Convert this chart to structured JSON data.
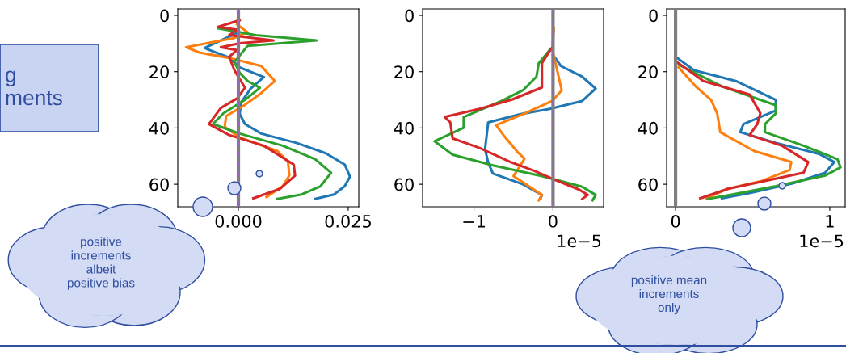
{
  "chart_data": [
    {
      "type": "line",
      "xlim": [
        -0.0138,
        0.0274
      ],
      "ylim": [
        68,
        -2.3
      ],
      "xticks": [
        {
          "value": 0,
          "label": "0.000"
        },
        {
          "value": 0.025,
          "label": "0.025"
        }
      ],
      "yticks": [
        0,
        20,
        40,
        60
      ],
      "grid": false,
      "ref_lines": [
        {
          "axis": "x",
          "value": 0,
          "color": "#7f7f7f"
        },
        {
          "axis": "x",
          "value": 0,
          "color": "#9467bd",
          "line_style": "dashed"
        }
      ],
      "annotations": [
        "g\nments",
        "positive\nincrements\nalbeit\npositive bias"
      ],
      "series": [
        {
          "color": "#1f77b4",
          "x": [
            0.0,
            -0.0077,
            -0.0021,
            0.0003,
            0.0058,
            0.0028,
            0.0006,
            0.0003,
            0.0015,
            0.0052,
            0.0132,
            0.0199,
            0.0242,
            0.0254,
            0.0242,
            0.0218,
            0.0175
          ],
          "values": [
            6,
            11.6,
            15,
            18.5,
            21.9,
            26,
            31,
            35,
            38.6,
            42,
            45.3,
            49,
            53,
            57.3,
            60.7,
            63.6,
            65.2
          ]
        },
        {
          "color": "#ff7f0e",
          "x": [
            -0.0003,
            0.0021,
            -0.0009,
            -0.0119,
            -0.0089,
            -0.0021,
            0.0052,
            0.0083,
            0.0052,
            0.0009,
            -0.0028,
            -0.0031,
            0.0003,
            0.0089,
            0.0113,
            0.0116,
            0.0101,
            0.0064
          ],
          "values": [
            3.2,
            6,
            8,
            11.3,
            13.2,
            15.1,
            18,
            23.3,
            27.6,
            32.4,
            35.8,
            39.6,
            43.4,
            48.2,
            52,
            56.9,
            60.7,
            64.5
          ]
        },
        {
          "color": "#2ca02c",
          "x": [
            -0.0046,
            0.004,
            0.0178,
            0.0021,
            -0.0009,
            0.0003,
            0.0021,
            0.0049,
            0.0015,
            -0.0034,
            -0.0058,
            0.0003,
            0.0101,
            0.0175,
            0.0211,
            0.0187,
            0.0144,
            0.0089
          ],
          "values": [
            4.6,
            7,
            8.9,
            10.8,
            16.6,
            20.4,
            23.3,
            25.7,
            30,
            34.8,
            38.6,
            42,
            46.3,
            51.1,
            55.9,
            60.7,
            63.6,
            65.2
          ]
        },
        {
          "color": "#d62728",
          "x": [
            0.0003,
            -0.0046,
            -0.0003,
            -0.0021,
            0.008,
            0.0003,
            -0.004,
            -0.0003,
            -0.0021,
            -0.0009,
            0.0015,
            -0.0003,
            -0.004,
            -0.0067,
            -0.0021,
            0.0058,
            0.0126,
            0.0129,
            0.0095,
            0.0034
          ],
          "values": [
            1.7,
            4.1,
            5.1,
            7,
            8.9,
            9.9,
            11.3,
            12.3,
            14.7,
            19.5,
            25.7,
            29.5,
            32.9,
            38.6,
            42.5,
            46.3,
            53,
            56.9,
            61.6,
            65
          ]
        }
      ]
    },
    {
      "type": "line",
      "xlim": [
        -1.65,
        0.64
      ],
      "ylim": [
        68,
        -2.3
      ],
      "xticks": [
        {
          "value": -1,
          "label": "−1"
        },
        0
      ],
      "yticks": [
        0,
        20,
        40,
        60
      ],
      "grid": false,
      "ref_lines": [
        {
          "axis": "x",
          "value": 0,
          "color": "#7f7f7f"
        },
        {
          "axis": "x",
          "value": 0,
          "color": "#9467bd",
          "line_style": "dashed"
        }
      ],
      "annotations": [
        "1e−5"
      ],
      "series": [
        {
          "color": "#1f77b4",
          "x": [
            0,
            0.1,
            0.37,
            0.54,
            0.37,
            -0.04,
            -0.41,
            -0.82,
            -0.84,
            -0.86,
            -0.82,
            -0.76,
            -0.38,
            -0.14,
            -0.16
          ],
          "values": [
            14.1,
            18,
            21.8,
            26,
            30.4,
            33.2,
            35.1,
            38,
            42.8,
            47.6,
            52.3,
            56.2,
            60,
            63.8,
            65.2
          ]
        },
        {
          "color": "#ff7f0e",
          "x": [
            0.01,
            -0.01,
            0.04,
            0.11,
            -0.01,
            -0.38,
            -0.72,
            -0.62,
            -0.45,
            -0.36,
            -0.5,
            -0.24,
            -0.14,
            -0.18
          ],
          "values": [
            4.6,
            12.2,
            18,
            26.6,
            30.4,
            35.1,
            39,
            42.8,
            48.5,
            50.9,
            57.1,
            61.9,
            63.8,
            65.7
          ]
        },
        {
          "color": "#2ca02c",
          "x": [
            -0.04,
            -0.18,
            -0.21,
            -0.38,
            -0.65,
            -1.13,
            -1.13,
            -1.5,
            -1.27,
            -0.76,
            -0.14,
            0.37,
            0.54,
            0.5
          ],
          "values": [
            12.2,
            17,
            21.8,
            26.6,
            30.4,
            36.1,
            39.9,
            44.7,
            49.5,
            53.3,
            57.1,
            60.9,
            63.8,
            65.7
          ]
        },
        {
          "color": "#d62728",
          "x": [
            -0.02,
            -0.14,
            -0.14,
            -0.52,
            -0.93,
            -1.37,
            -1.3,
            -1.27,
            -0.93,
            -0.52,
            -0.24,
            0.03,
            0.33,
            0.44,
            0.37
          ],
          "values": [
            11.7,
            17,
            25.6,
            29.9,
            33.2,
            36.1,
            38,
            43.7,
            47.1,
            52.3,
            55.2,
            58.5,
            61.9,
            63.8,
            65.2
          ]
        }
      ]
    },
    {
      "type": "line",
      "xlim": [
        -0.058,
        1.1
      ],
      "ylim": [
        68,
        -2.3
      ],
      "xticks": [
        0,
        1
      ],
      "yticks": [
        0,
        20,
        40,
        60
      ],
      "grid": false,
      "ref_lines": [
        {
          "axis": "x",
          "value": 0,
          "color": "#7f7f7f"
        },
        {
          "axis": "x",
          "value": 0,
          "color": "#9467bd",
          "line_style": "dashed"
        }
      ],
      "annotations": [
        "1e−5",
        "positive mean\nincrements\nonly"
      ],
      "series": [
        {
          "color": "#1f77b4",
          "x": [
            0,
            0.12,
            0.39,
            0.65,
            0.65,
            0.44,
            0.42,
            0.65,
            0.93,
            1.03,
            0.97,
            0.76,
            0.48,
            0.3
          ],
          "values": [
            14.7,
            19.5,
            23.3,
            30,
            33.8,
            38.6,
            41.5,
            45.3,
            49.2,
            52.1,
            55.9,
            59.7,
            63.1,
            65
          ]
        },
        {
          "color": "#ff7f0e",
          "x": [
            0.02,
            0.13,
            0.23,
            0.27,
            0.29,
            0.51,
            0.75,
            0.74,
            0.56,
            0.34,
            0.2
          ],
          "values": [
            18.5,
            25.2,
            30,
            34.8,
            41.5,
            48.2,
            52.1,
            54.9,
            58.8,
            61.6,
            65
          ]
        },
        {
          "color": "#2ca02c",
          "x": [
            0.02,
            0.3,
            0.65,
            0.65,
            0.58,
            0.58,
            0.83,
            1.05,
            1.07,
            0.97,
            0.65,
            0.37,
            0.21
          ],
          "values": [
            17.5,
            25.2,
            31.9,
            34.8,
            38.6,
            41.5,
            46.3,
            51.1,
            54,
            56.9,
            60.7,
            63.6,
            65.2
          ]
        },
        {
          "color": "#d62728",
          "x": [
            0.01,
            0.18,
            0.48,
            0.55,
            0.53,
            0.48,
            0.69,
            0.86,
            0.83,
            0.58,
            0.34,
            0.16
          ],
          "values": [
            16.6,
            23.3,
            28.1,
            34.8,
            38.6,
            42.5,
            46.3,
            52.1,
            55.9,
            58.8,
            61.6,
            65
          ]
        }
      ]
    }
  ]
}
